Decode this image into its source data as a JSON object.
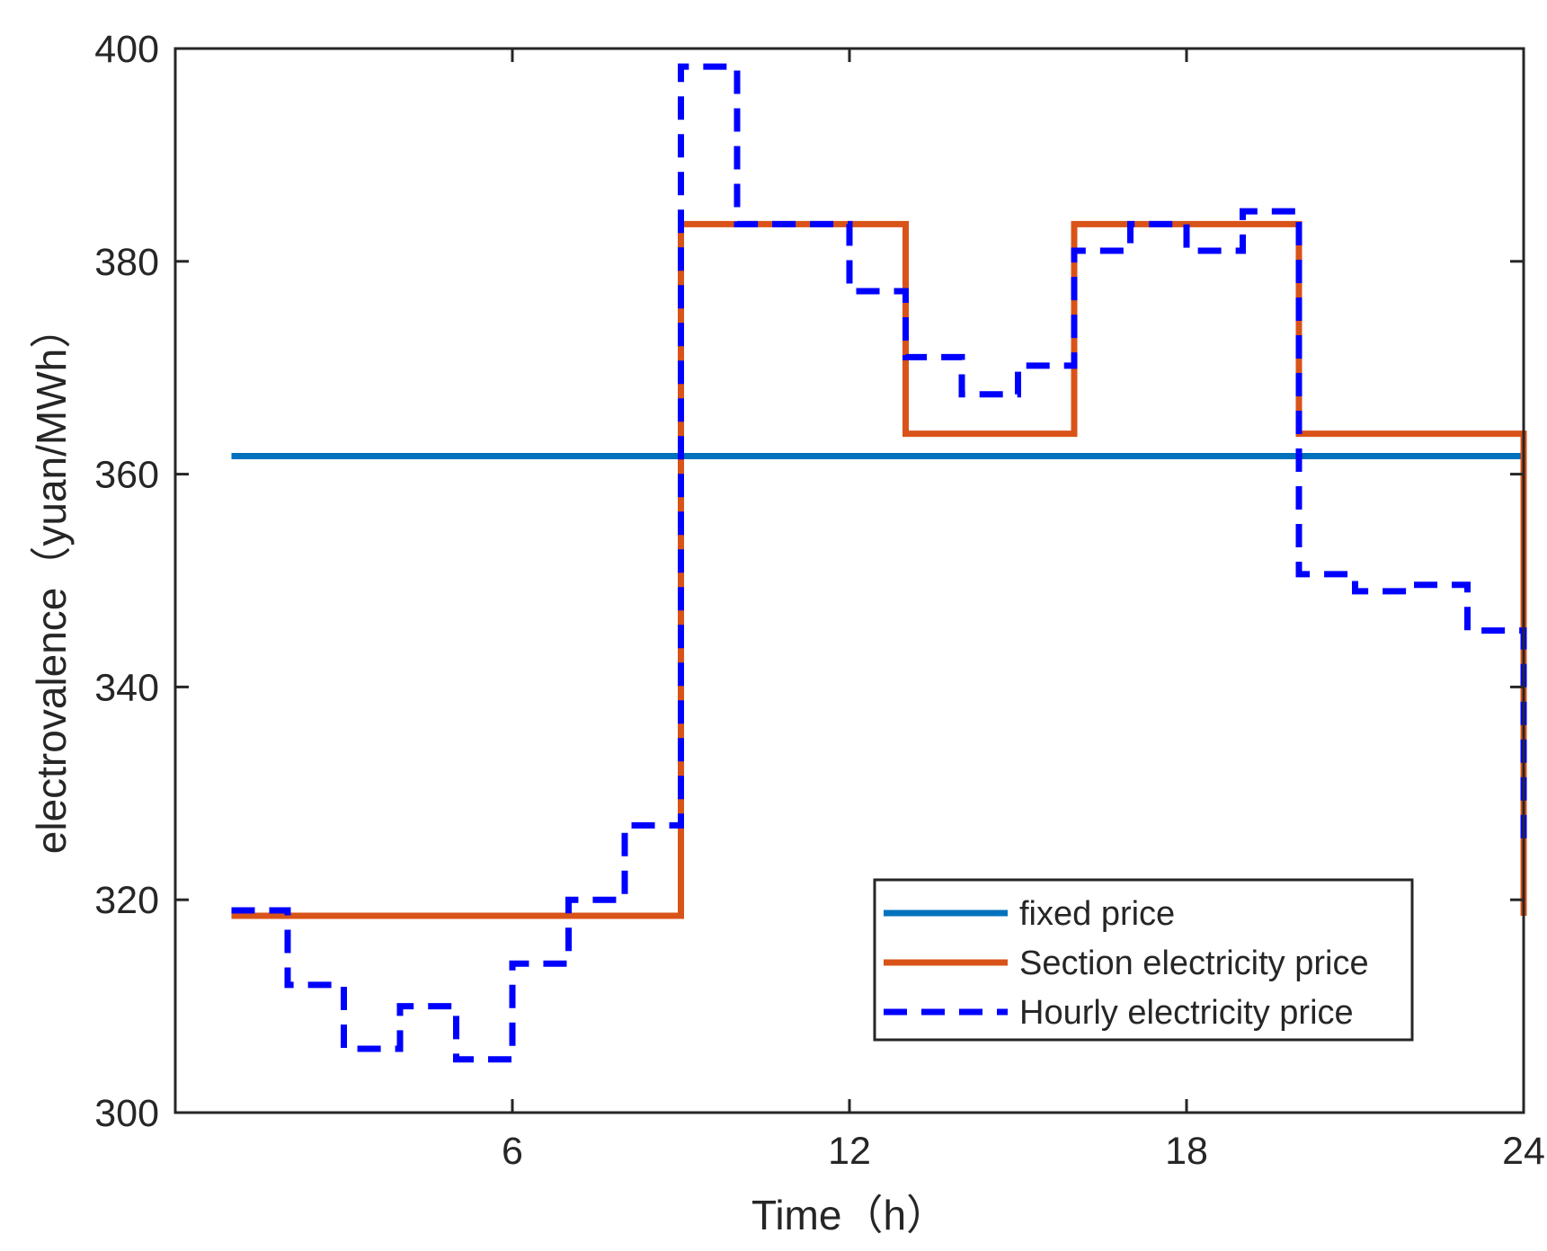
{
  "chart_data": {
    "type": "line",
    "step": "post",
    "title": "",
    "xlabel": "Time（h）",
    "ylabel": "electrovalence（yuan/MWh）",
    "xlim": [
      0,
      24
    ],
    "ylim": [
      300,
      400
    ],
    "xticks": [
      6,
      12,
      18,
      24
    ],
    "yticks": [
      300,
      320,
      340,
      360,
      380,
      400
    ],
    "grid": false,
    "legend_position": "bottom-right",
    "series": [
      {
        "name": "fixed price",
        "color": "#0072BD",
        "style": "solid",
        "x": [
          1,
          24
        ],
        "y": [
          361.7,
          361.7
        ]
      },
      {
        "name": "Section electricity price",
        "color": "#D95319",
        "style": "solid",
        "x": [
          1,
          9,
          13,
          16,
          20,
          24,
          24
        ],
        "y": [
          318.5,
          383.5,
          363.8,
          383.5,
          363.8,
          363.8,
          318.5
        ]
      },
      {
        "name": "Hourly electricity price",
        "color": "#0000FF",
        "style": "dashed",
        "x": [
          1,
          2,
          3,
          4,
          5,
          6,
          7,
          8,
          9,
          10,
          11,
          12,
          13,
          14,
          15,
          16,
          17,
          18,
          19,
          20,
          21,
          22,
          23,
          24,
          24
        ],
        "y": [
          319,
          312,
          306,
          310,
          305,
          314,
          320,
          327,
          398.3,
          383.5,
          383.5,
          377.2,
          371,
          367.5,
          370.2,
          381,
          383.5,
          381,
          384.7,
          350.6,
          349,
          349.6,
          345.3,
          345.3,
          325.6
        ]
      }
    ]
  }
}
